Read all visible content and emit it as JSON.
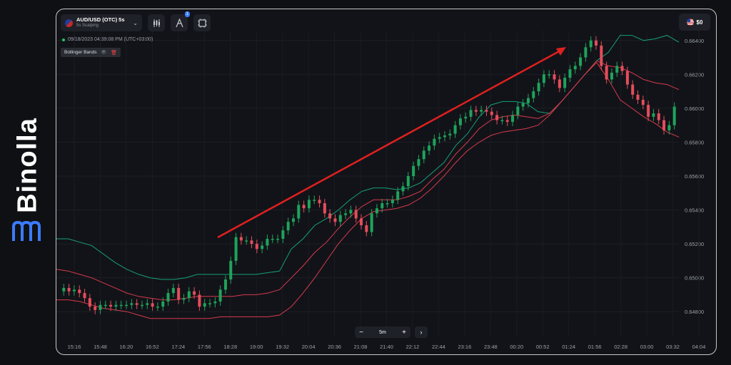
{
  "brand": {
    "name": "Binolla",
    "accent": "#3b7bff"
  },
  "header": {
    "asset_name": "AUD/USD (OTC) 5s",
    "asset_sub": "5s Scalping",
    "badge": "1",
    "balance": "$0",
    "icons": [
      "candles-icon",
      "drawing-icon",
      "chart-settings-icon"
    ]
  },
  "status": {
    "datetime": "09/18/2023 04:39:08 PM (UTC+03:00)"
  },
  "indicator": {
    "label": "Bollinger Bands",
    "eye": "👁",
    "trash": "🗑"
  },
  "zoom": {
    "minus": "−",
    "value": "5m",
    "plus": "+",
    "next": "›"
  },
  "chart_data": {
    "type": "candlestick",
    "title": "",
    "price_range": [
      0.647,
      0.665
    ],
    "y_ticks": [
      "0.66400",
      "0.66200",
      "0.66000",
      "0.65800",
      "0.65600",
      "0.65400",
      "0.65200",
      "0.65000",
      "0.64800"
    ],
    "x_ticks": [
      "15:16",
      "15:48",
      "16:20",
      "16:52",
      "17:24",
      "17:56",
      "18:28",
      "19:00",
      "19:32",
      "20:04",
      "20:36",
      "21:08",
      "21:40",
      "22:12",
      "22:44",
      "23:16",
      "23:48",
      "00:20",
      "00:52",
      "01:24",
      "01:56",
      "02:28",
      "03:00",
      "03:32",
      "04:04"
    ],
    "colors": {
      "up": "#1fa35c",
      "down": "#e44d5c",
      "upper_band": "#15a07a",
      "lower_band": "#d63a4c",
      "arrow": "#e02020"
    },
    "candles": [
      0.6492,
      0.6494,
      0.6492,
      0.6493,
      0.6491,
      0.6488,
      0.6483,
      0.6481,
      0.6484,
      0.6484,
      0.6483,
      0.6484,
      0.6484,
      0.6484,
      0.6485,
      0.6484,
      0.6484,
      0.6485,
      0.6483,
      0.6483,
      0.6486,
      0.6491,
      0.6494,
      0.6487,
      0.6488,
      0.6492,
      0.649,
      0.6483,
      0.6485,
      0.6485,
      0.6486,
      0.6493,
      0.6499,
      0.651,
      0.6524,
      0.6522,
      0.6522,
      0.652,
      0.6517,
      0.6519,
      0.6523,
      0.6523,
      0.6523,
      0.6528,
      0.6533,
      0.6535,
      0.6543,
      0.6541,
      0.6546,
      0.6546,
      0.6544,
      0.6538,
      0.6535,
      0.6533,
      0.6537,
      0.6538,
      0.654,
      0.6535,
      0.6531,
      0.6527,
      0.6538,
      0.6541,
      0.6544,
      0.6544,
      0.6546,
      0.6551,
      0.6554,
      0.656,
      0.6566,
      0.657,
      0.6575,
      0.6578,
      0.6582,
      0.6583,
      0.6584,
      0.6585,
      0.659,
      0.6594,
      0.6595,
      0.6599,
      0.6598,
      0.6599,
      0.6598,
      0.6596,
      0.6593,
      0.6593,
      0.6592,
      0.6596,
      0.6601,
      0.6603,
      0.6606,
      0.661,
      0.6615,
      0.662,
      0.662,
      0.6617,
      0.6612,
      0.6618,
      0.6623,
      0.6625,
      0.663,
      0.6636,
      0.664,
      0.6637,
      0.6625,
      0.6617,
      0.6621,
      0.6625,
      0.6622,
      0.6614,
      0.6608,
      0.6605,
      0.6602,
      0.6595,
      0.6597,
      0.6593,
      0.6587,
      0.659,
      0.6601
    ],
    "upper_band": [
      [
        0,
        0.6523
      ],
      [
        1,
        0.6523
      ],
      [
        2,
        0.6521
      ],
      [
        3,
        0.6519
      ],
      [
        4,
        0.6514
      ],
      [
        5,
        0.6509
      ],
      [
        6,
        0.6505
      ],
      [
        7,
        0.6502
      ],
      [
        8,
        0.65
      ],
      [
        9,
        0.6499
      ],
      [
        10,
        0.6499
      ],
      [
        11,
        0.65
      ],
      [
        12,
        0.6502
      ],
      [
        13,
        0.6502
      ],
      [
        14,
        0.6502
      ],
      [
        15,
        0.6502
      ],
      [
        16,
        0.6502
      ],
      [
        17,
        0.6502
      ],
      [
        18,
        0.6503
      ],
      [
        19,
        0.6504
      ],
      [
        20,
        0.6517
      ],
      [
        21,
        0.6523
      ],
      [
        22,
        0.6531
      ],
      [
        23,
        0.6535
      ],
      [
        24,
        0.654
      ],
      [
        25,
        0.6546
      ],
      [
        26,
        0.6551
      ],
      [
        27,
        0.6553
      ],
      [
        28,
        0.6553
      ],
      [
        29,
        0.6552
      ],
      [
        30,
        0.6553
      ],
      [
        31,
        0.6556
      ],
      [
        32,
        0.6562
      ],
      [
        33,
        0.6568
      ],
      [
        34,
        0.6578
      ],
      [
        35,
        0.6585
      ],
      [
        36,
        0.6595
      ],
      [
        37,
        0.6602
      ],
      [
        38,
        0.6604
      ],
      [
        39,
        0.6604
      ],
      [
        40,
        0.6603
      ],
      [
        41,
        0.6598
      ],
      [
        42,
        0.6597
      ],
      [
        43,
        0.6604
      ],
      [
        44,
        0.6612
      ],
      [
        45,
        0.662
      ],
      [
        46,
        0.6628
      ],
      [
        47,
        0.6633
      ],
      [
        48,
        0.6643
      ],
      [
        49,
        0.6643
      ],
      [
        50,
        0.664
      ],
      [
        51,
        0.6641
      ],
      [
        52,
        0.6643
      ],
      [
        53,
        0.6639
      ]
    ],
    "lower_band": [
      [
        0,
        0.6487
      ],
      [
        1,
        0.6487
      ],
      [
        2,
        0.6486
      ],
      [
        3,
        0.6484
      ],
      [
        4,
        0.6482
      ],
      [
        5,
        0.6481
      ],
      [
        6,
        0.648
      ],
      [
        7,
        0.6478
      ],
      [
        8,
        0.6476
      ],
      [
        9,
        0.6476
      ],
      [
        10,
        0.6476
      ],
      [
        11,
        0.6476
      ],
      [
        12,
        0.6476
      ],
      [
        13,
        0.6476
      ],
      [
        14,
        0.6477
      ],
      [
        15,
        0.6477
      ],
      [
        16,
        0.6477
      ],
      [
        17,
        0.6477
      ],
      [
        18,
        0.6477
      ],
      [
        19,
        0.6478
      ],
      [
        20,
        0.6483
      ],
      [
        21,
        0.6491
      ],
      [
        22,
        0.65
      ],
      [
        23,
        0.651
      ],
      [
        24,
        0.652
      ],
      [
        25,
        0.6528
      ],
      [
        26,
        0.6535
      ],
      [
        27,
        0.6539
      ],
      [
        28,
        0.654
      ],
      [
        29,
        0.6541
      ],
      [
        30,
        0.6543
      ],
      [
        31,
        0.6547
      ],
      [
        32,
        0.6553
      ],
      [
        33,
        0.656
      ],
      [
        34,
        0.6568
      ],
      [
        35,
        0.6575
      ],
      [
        36,
        0.658
      ],
      [
        37,
        0.6584
      ],
      [
        38,
        0.6586
      ],
      [
        39,
        0.6587
      ],
      [
        40,
        0.6588
      ],
      [
        41,
        0.659
      ],
      [
        42,
        0.6596
      ],
      [
        43,
        0.6604
      ],
      [
        44,
        0.6612
      ],
      [
        45,
        0.662
      ],
      [
        46,
        0.6627
      ],
      [
        47,
        0.6617
      ],
      [
        48,
        0.6605
      ],
      [
        49,
        0.66
      ],
      [
        50,
        0.6595
      ],
      [
        51,
        0.6591
      ],
      [
        52,
        0.6586
      ],
      [
        53,
        0.6583
      ]
    ],
    "mid_band": [
      [
        0,
        0.6505
      ],
      [
        1,
        0.6504
      ],
      [
        2,
        0.6502
      ],
      [
        3,
        0.65
      ],
      [
        4,
        0.6497
      ],
      [
        5,
        0.6494
      ],
      [
        6,
        0.6491
      ],
      [
        7,
        0.6489
      ],
      [
        8,
        0.6488
      ],
      [
        9,
        0.6487
      ],
      [
        10,
        0.6487
      ],
      [
        11,
        0.6488
      ],
      [
        12,
        0.6489
      ],
      [
        13,
        0.6489
      ],
      [
        14,
        0.6489
      ],
      [
        15,
        0.6489
      ],
      [
        16,
        0.649
      ],
      [
        17,
        0.649
      ],
      [
        18,
        0.6491
      ],
      [
        19,
        0.6493
      ],
      [
        20,
        0.65
      ],
      [
        21,
        0.6507
      ],
      [
        22,
        0.6515
      ],
      [
        23,
        0.6521
      ],
      [
        24,
        0.6529
      ],
      [
        25,
        0.6536
      ],
      [
        26,
        0.6542
      ],
      [
        27,
        0.6546
      ],
      [
        28,
        0.6546
      ],
      [
        29,
        0.6546
      ],
      [
        30,
        0.6548
      ],
      [
        31,
        0.6551
      ],
      [
        32,
        0.6558
      ],
      [
        33,
        0.6564
      ],
      [
        34,
        0.6573
      ],
      [
        35,
        0.658
      ],
      [
        36,
        0.6588
      ],
      [
        37,
        0.6593
      ],
      [
        38,
        0.6595
      ],
      [
        39,
        0.6596
      ],
      [
        40,
        0.6595
      ],
      [
        41,
        0.6594
      ],
      [
        42,
        0.6597
      ],
      [
        43,
        0.6604
      ],
      [
        44,
        0.6612
      ],
      [
        45,
        0.662
      ],
      [
        46,
        0.6628
      ],
      [
        47,
        0.6625
      ],
      [
        48,
        0.6624
      ],
      [
        49,
        0.6621
      ],
      [
        50,
        0.6617
      ],
      [
        51,
        0.6615
      ],
      [
        52,
        0.6614
      ],
      [
        53,
        0.6611
      ]
    ]
  }
}
